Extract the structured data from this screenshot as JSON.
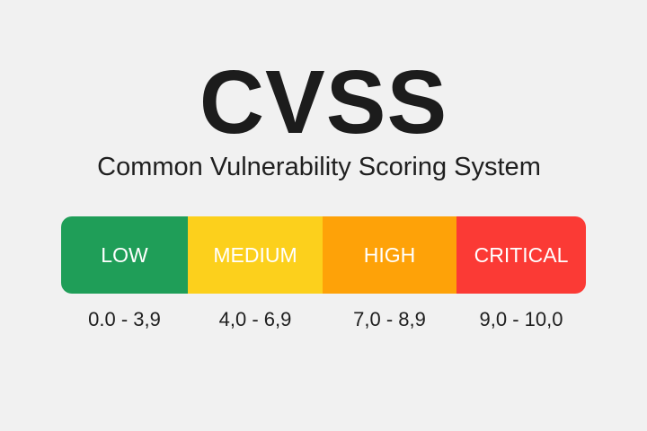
{
  "title": "CVSS",
  "subtitle": "Common Vulnerability Scoring System",
  "severity_levels": [
    {
      "label": "LOW",
      "range": "0.0 - 3,9",
      "color": "#1f9e58",
      "width": 141
    },
    {
      "label": "MEDIUM",
      "range": "4,0 - 6,9",
      "color": "#fcd01c",
      "width": 150
    },
    {
      "label": "HIGH",
      "range": "7,0 - 8,9",
      "color": "#fea208",
      "width": 149
    },
    {
      "label": "CRITICAL",
      "range": "9,0 - 10,0",
      "color": "#fb3a35",
      "width": 144
    }
  ]
}
